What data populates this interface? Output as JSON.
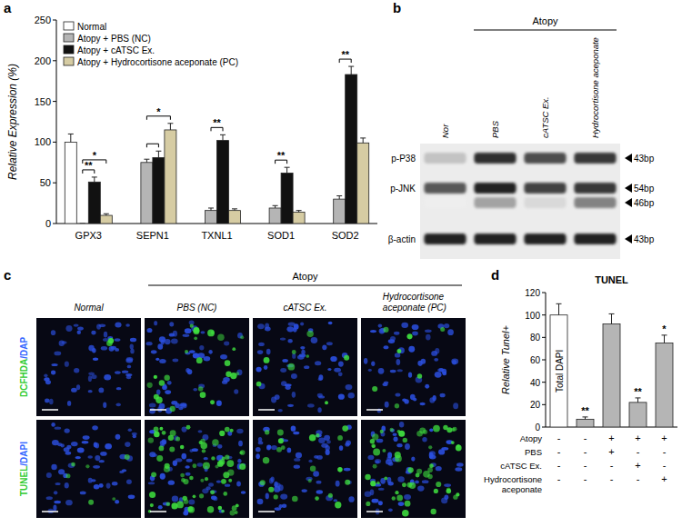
{
  "panel_labels": [
    "a",
    "b",
    "c",
    "d"
  ],
  "chart_data": [
    {
      "type": "bar",
      "ylabel": "Relative Expression (%)",
      "categories": [
        "GPX3",
        "SEPN1",
        "TXNL1",
        "SOD1",
        "SOD2"
      ],
      "series": [
        {
          "name": "Normal",
          "color": "#ffffff",
          "values": [
            100,
            null,
            null,
            null,
            null
          ],
          "errors": [
            10,
            null,
            null,
            null,
            null
          ]
        },
        {
          "name": "Atopy + PBS (NC)",
          "color": "#b5b5b5",
          "values": [
            0,
            75,
            16,
            19,
            30
          ],
          "errors": [
            0,
            4,
            3,
            3,
            4
          ]
        },
        {
          "name": "Atopy + cATSC Ex.",
          "color": "#111111",
          "values": [
            51,
            81,
            102,
            62,
            183
          ],
          "errors": [
            6,
            8,
            7,
            7,
            10
          ]
        },
        {
          "name": "Atopy + Hydrocortisone aceponate (PC)",
          "color": "#d6cca3",
          "values": [
            10,
            115,
            16,
            14,
            99
          ],
          "errors": [
            2,
            8,
            2,
            2,
            6
          ]
        }
      ],
      "ylim": [
        0,
        250
      ],
      "yticks": [
        0,
        50,
        100,
        150,
        200,
        250
      ],
      "legend": "upper left",
      "annotations": [
        {
          "text": "**",
          "category": 0,
          "between": [
            1,
            2
          ]
        },
        {
          "text": "*",
          "category": 0,
          "between": [
            1,
            3
          ]
        },
        {
          "category": 1,
          "between": [
            1,
            2
          ]
        },
        {
          "text": "*",
          "category": 1,
          "between": [
            1,
            3
          ]
        },
        {
          "text": "**",
          "category": 2,
          "between": [
            1,
            2
          ]
        },
        {
          "text": "**",
          "category": 3,
          "between": [
            1,
            2
          ]
        },
        {
          "text": "**",
          "category": 4,
          "between": [
            1,
            2
          ]
        }
      ]
    },
    {
      "type": "bar",
      "title": "TUNEL",
      "ylabel": "Relative Tunel+",
      "categories": [
        null,
        null,
        null,
        null,
        null
      ],
      "values": [
        100,
        7,
        92,
        22,
        75
      ],
      "errors": [
        10,
        2,
        9,
        4,
        7
      ],
      "colors": [
        "#ffffff",
        "#b5b5b5",
        "#b5b5b5",
        "#b5b5b5",
        "#b5b5b5"
      ],
      "ylim": [
        0,
        120
      ],
      "yticks": [
        0,
        20,
        40,
        60,
        80,
        100,
        120
      ],
      "annotations": [
        {
          "text": "Total DAPI",
          "index": 0,
          "inside": true
        },
        {
          "text": "**",
          "index": 1
        },
        {
          "text": "**",
          "index": 3
        },
        {
          "text": "*",
          "index": 4
        }
      ],
      "conditions": [
        {
          "name": "Atopy",
          "marks": [
            "-",
            "-",
            "+",
            "+",
            "+"
          ]
        },
        {
          "name": "PBS",
          "marks": [
            "-",
            "-",
            "+",
            "-",
            "-"
          ]
        },
        {
          "name": "cATSC Ex.",
          "marks": [
            "-",
            "-",
            "-",
            "+",
            "-"
          ]
        },
        {
          "name": "Hydrocortisone aceponate",
          "marks": [
            "-",
            "-",
            "-",
            "-",
            "+"
          ]
        }
      ]
    }
  ],
  "blot": {
    "group_label": "Atopy",
    "group_lanes": [
      1,
      3
    ],
    "lanes": [
      "Nor",
      "PBS",
      "cATSC Ex.",
      "Hydrocortisone aceponate"
    ],
    "bands": [
      {
        "label": "p-P38",
        "size": "43bp",
        "intensity": [
          0.2,
          0.9,
          0.75,
          0.85
        ]
      },
      {
        "label": "p-JNK",
        "size": "54bp",
        "intensity": [
          0.7,
          0.95,
          0.8,
          0.85
        ]
      },
      {
        "size": "46bp",
        "intensity": [
          0.0,
          0.35,
          0.1,
          0.5
        ]
      },
      {
        "label": "β-actin",
        "size": "43bp",
        "intensity": [
          0.95,
          0.95,
          0.95,
          0.95
        ]
      }
    ]
  },
  "micrographs": {
    "group_label": "Atopy",
    "group_columns": [
      1,
      3
    ],
    "columns": [
      "Normal",
      "PBS (NC)",
      "cATSC Ex.",
      "Hydrocortisone aceponate (PC)"
    ],
    "rows": [
      {
        "parts": [
          {
            "text": "DCFHDA",
            "color": "#33cc33"
          },
          {
            "text": "/DAP",
            "color": "#3366ff"
          }
        ],
        "signal": [
          0.03,
          0.35,
          0.12,
          0.1
        ]
      },
      {
        "parts": [
          {
            "text": "TUNEL",
            "color": "#33cc33"
          },
          {
            "text": "/DAPI",
            "color": "#3366ff"
          }
        ],
        "signal": [
          0.08,
          0.95,
          0.3,
          0.75
        ]
      }
    ]
  }
}
